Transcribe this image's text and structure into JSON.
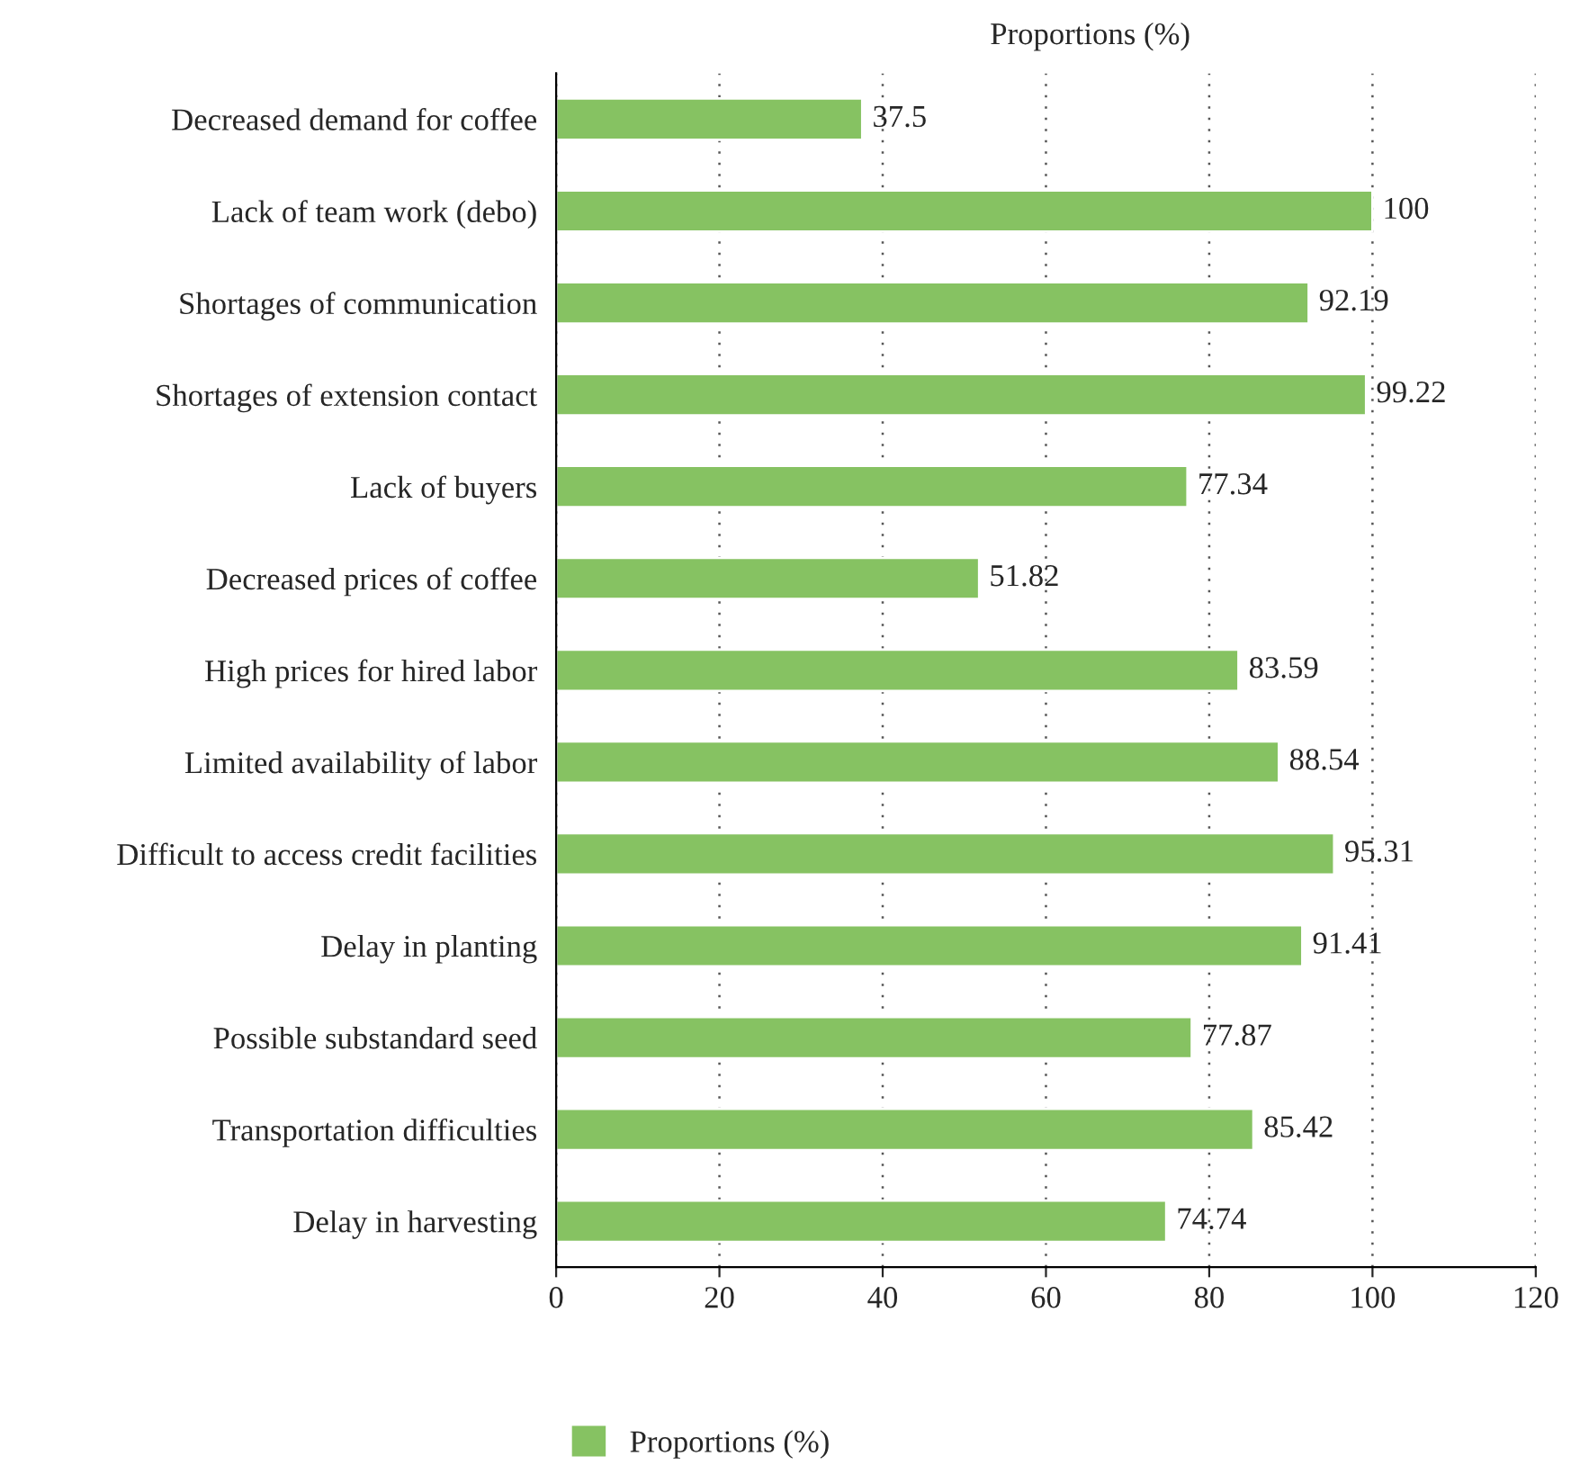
{
  "chart_data": {
    "type": "bar",
    "orientation": "horizontal",
    "title": "Proportions (%)",
    "categories": [
      "Decreased demand for coffee",
      "Lack of team work (debo)",
      "Shortages of communication",
      "Shortages of extension contact",
      "Lack of buyers",
      "Decreased prices of coffee",
      "High prices for hired labor",
      "Limited availability of labor",
      "Difficult to access credit facilities",
      "Delay in planting",
      "Possible substandard seed",
      "Transportation difficulties",
      "Delay in harvesting"
    ],
    "series": [
      {
        "name": "Proportions (%)",
        "color": "#86c262",
        "values": [
          37.5,
          100,
          92.19,
          99.22,
          77.34,
          51.82,
          83.59,
          88.54,
          95.31,
          91.41,
          77.87,
          85.42,
          74.74
        ]
      }
    ],
    "xlim": [
      0,
      120
    ],
    "xticks": [
      0,
      20,
      40,
      60,
      80,
      100,
      120
    ],
    "grid": "x",
    "legend": "bottom",
    "data_labels": true
  }
}
